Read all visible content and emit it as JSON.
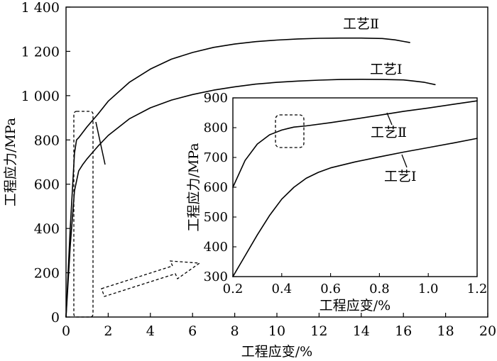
{
  "chart_data": [
    {
      "type": "line",
      "xlabel": "工程应变/%",
      "ylabel": "工程应力/MPa",
      "xlim": [
        0,
        20
      ],
      "ylim": [
        0,
        1400
      ],
      "x_ticks": [
        "0",
        "2",
        "4",
        "6",
        "8",
        "10",
        "12",
        "14",
        "16",
        "18",
        "20"
      ],
      "y_ticks": [
        "0",
        "200",
        "400",
        "600",
        "800",
        "1 000",
        "1 200",
        "1 400"
      ],
      "grid": false,
      "series": [
        {
          "name": "工艺Ⅱ",
          "x": [
            0.0,
            0.2,
            0.4,
            0.5,
            0.6,
            0.8,
            1.0,
            1.5,
            2.0,
            3.0,
            4.0,
            5.0,
            6.0,
            7.0,
            8.0,
            9.0,
            10.0,
            11.0,
            12.0,
            13.0,
            14.0,
            15.0,
            15.6,
            16.0,
            16.3
          ],
          "y": [
            0,
            400,
            740,
            800,
            810,
            835,
            860,
            915,
            975,
            1060,
            1120,
            1165,
            1195,
            1218,
            1233,
            1244,
            1251,
            1256,
            1259,
            1260,
            1260,
            1258,
            1252,
            1245,
            1240
          ]
        },
        {
          "name": "工艺Ⅰ",
          "x": [
            0.0,
            0.2,
            0.4,
            0.6,
            0.8,
            1.0,
            1.5,
            2.0,
            3.0,
            4.0,
            5.0,
            6.0,
            7.0,
            8.0,
            9.0,
            10.0,
            11.0,
            12.0,
            13.0,
            14.0,
            15.0,
            16.0,
            16.5,
            17.0,
            17.5
          ],
          "y": [
            0,
            320,
            570,
            660,
            690,
            715,
            770,
            820,
            895,
            945,
            980,
            1005,
            1025,
            1040,
            1052,
            1060,
            1066,
            1070,
            1073,
            1074,
            1073,
            1071,
            1066,
            1060,
            1050
          ]
        }
      ]
    },
    {
      "type": "line",
      "xlabel": "工程应变/%",
      "ylabel": "工程应力/MPa",
      "xlim": [
        0.2,
        1.2
      ],
      "ylim": [
        300,
        900
      ],
      "x_ticks": [
        "0.2",
        "0.4",
        "0.6",
        "0.8",
        "1.0",
        "1.2"
      ],
      "y_ticks": [
        "300",
        "400",
        "500",
        "600",
        "700",
        "800",
        "900"
      ],
      "grid": false,
      "series": [
        {
          "name": "工艺Ⅱ",
          "x": [
            0.2,
            0.25,
            0.3,
            0.35,
            0.4,
            0.43,
            0.45,
            0.5,
            0.6,
            0.7,
            0.8,
            0.9,
            1.0,
            1.1,
            1.2
          ],
          "y": [
            600,
            690,
            745,
            776,
            792,
            798,
            802,
            806,
            817,
            829,
            842,
            855,
            866,
            878,
            890
          ]
        },
        {
          "name": "工艺Ⅰ",
          "x": [
            0.2,
            0.25,
            0.3,
            0.35,
            0.4,
            0.45,
            0.5,
            0.55,
            0.6,
            0.7,
            0.8,
            0.9,
            1.0,
            1.1,
            1.2
          ],
          "y": [
            300,
            370,
            440,
            505,
            560,
            600,
            630,
            650,
            665,
            685,
            702,
            718,
            733,
            748,
            764
          ]
        }
      ]
    }
  ]
}
